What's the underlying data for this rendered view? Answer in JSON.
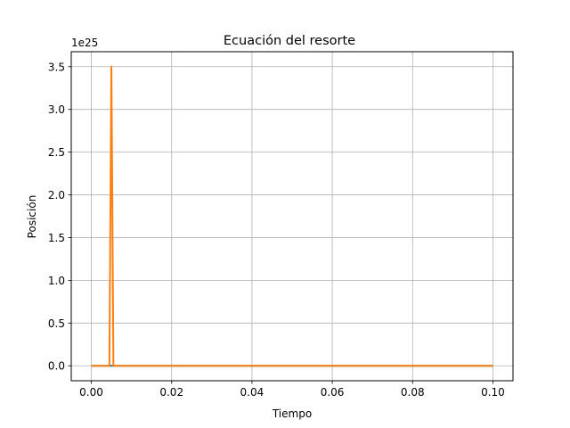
{
  "chart_data": {
    "type": "line",
    "title": "Ecuación del resorte",
    "xlabel": "Tiempo",
    "ylabel": "Posición",
    "y_offset_label": "1e25",
    "y_scale_factor": 1e+25,
    "xlim": [
      -0.005,
      0.105
    ],
    "ylim": [
      -0.175,
      3.675
    ],
    "x_ticks": [
      0.0,
      0.02,
      0.04,
      0.06,
      0.08,
      0.1
    ],
    "x_tick_labels": [
      "0.00",
      "0.02",
      "0.04",
      "0.06",
      "0.08",
      "0.10"
    ],
    "y_ticks": [
      0.0,
      0.5,
      1.0,
      1.5,
      2.0,
      2.5,
      3.0,
      3.5
    ],
    "y_tick_labels": [
      "0.0",
      "0.5",
      "1.0",
      "1.5",
      "2.0",
      "2.5",
      "3.0",
      "3.5"
    ],
    "grid": true,
    "legend": "none",
    "series": [
      {
        "color": "#1f77b4",
        "x": [
          0.0,
          0.0045,
          0.005,
          0.0055,
          0.1
        ],
        "y": [
          0.0,
          0.0,
          0.0,
          0.0,
          0.0
        ]
      },
      {
        "color": "#ff7f0e",
        "x": [
          0.0,
          0.0045,
          0.005,
          0.0055,
          0.1
        ],
        "y": [
          0.0,
          0.0,
          3.5,
          0.0,
          0.0
        ]
      }
    ]
  }
}
